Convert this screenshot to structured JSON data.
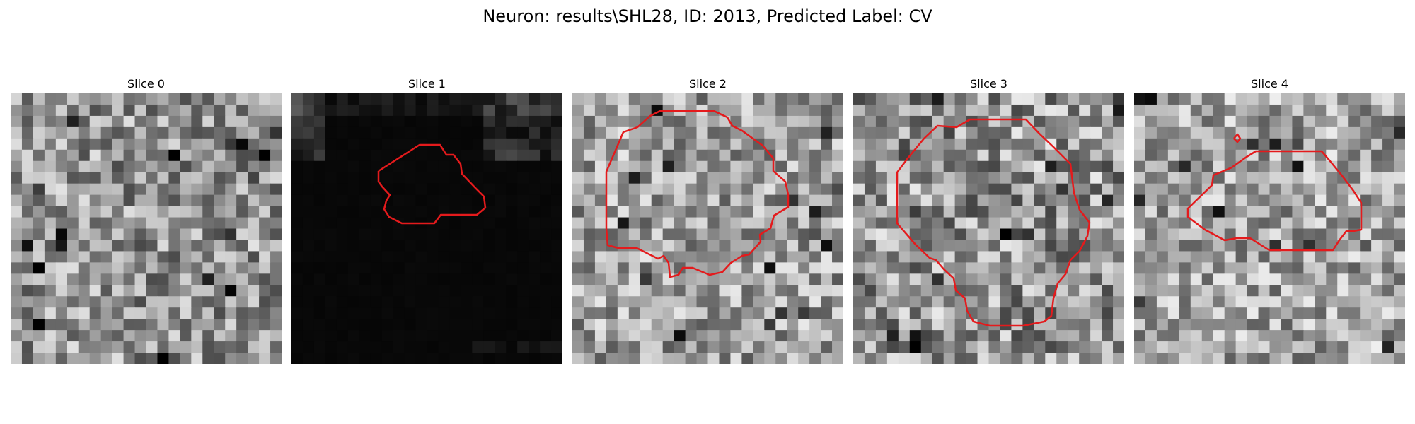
{
  "figure": {
    "title": "Neuron: results\\SHL28, ID: 2013, Predicted Label: CV"
  },
  "panels": [
    {
      "title": "Slice 0",
      "mean_gray": 150,
      "contrast": 48,
      "seed": 11
    },
    {
      "title": "Slice 1",
      "mean_gray": 8,
      "contrast": 4,
      "seed": 23
    },
    {
      "title": "Slice 2",
      "mean_gray": 160,
      "contrast": 46,
      "seed": 37
    },
    {
      "title": "Slice 3",
      "mean_gray": 150,
      "contrast": 52,
      "seed": 53
    },
    {
      "title": "Slice 4",
      "mean_gray": 165,
      "contrast": 46,
      "seed": 71
    }
  ],
  "colors": {
    "background": "#ffffff",
    "contour": "#e41a1c"
  }
}
